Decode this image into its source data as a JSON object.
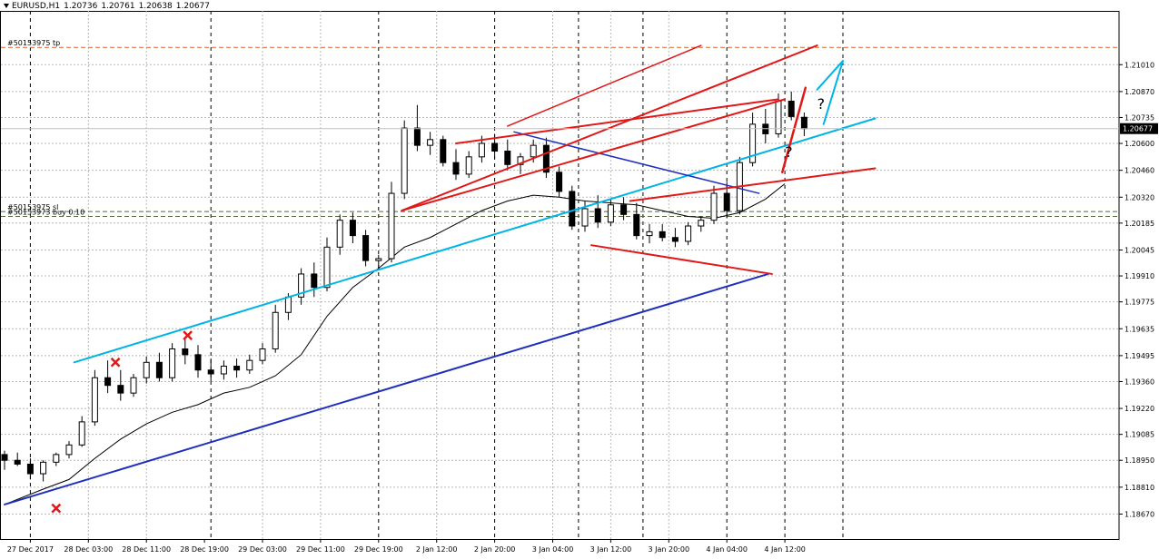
{
  "header": {
    "symbol": "EURUSD,H1",
    "open": "1.20736",
    "high": "1.20761",
    "low": "1.20638",
    "close": "1.20677"
  },
  "hlines": [
    {
      "label": "#50153975 tp",
      "price": 1.211,
      "color": "#d2691e"
    },
    {
      "label": "#50153975 sl",
      "price": 1.20245,
      "color": "#556b2f"
    },
    {
      "label": "#50153973 buy 0.10",
      "price": 1.2022,
      "color": "#556b2f"
    }
  ],
  "current_price": "1.20677",
  "annotations": [
    {
      "text": "?",
      "x": 63.0,
      "y": 1.2078
    },
    {
      "text": "?",
      "x": 60.5,
      "y": 1.2053
    }
  ],
  "chart_data": {
    "type": "candlestick",
    "timeframe": "H1",
    "y_range": [
      1.1854,
      1.2129
    ],
    "y_ticks": [
      "1.21010",
      "1.20870",
      "1.20735",
      "1.20600",
      "1.20460",
      "1.20320",
      "1.20185",
      "1.20045",
      "1.19910",
      "1.19775",
      "1.19635",
      "1.19495",
      "1.19360",
      "1.19220",
      "1.19085",
      "1.18950",
      "1.18810",
      "1.18670"
    ],
    "x_labels": [
      {
        "i": 2,
        "label": "27 Dec 2017"
      },
      {
        "i": 6.5,
        "label": "28 Dec 03:00"
      },
      {
        "i": 11,
        "label": "28 Dec 11:00"
      },
      {
        "i": 15.5,
        "label": "28 Dec 19:00"
      },
      {
        "i": 20,
        "label": "29 Dec 03:00"
      },
      {
        "i": 24.5,
        "label": "29 Dec 11:00"
      },
      {
        "i": 29,
        "label": "29 Dec 19:00"
      },
      {
        "i": 33.5,
        "label": "2 Jan 12:00"
      },
      {
        "i": 38,
        "label": "2 Jan 20:00"
      },
      {
        "i": 42.5,
        "label": "3 Jan 04:00"
      },
      {
        "i": 47,
        "label": "3 Jan 12:00"
      },
      {
        "i": 51.5,
        "label": "3 Jan 20:00"
      },
      {
        "i": 56,
        "label": "4 Jan 04:00"
      },
      {
        "i": 60.5,
        "label": "4 Jan 12:00"
      }
    ],
    "vgrid_dashed": [
      2,
      16,
      29,
      38,
      44.5,
      49.5,
      56,
      60.5,
      65
    ],
    "vgrid_dotted": [
      6.5,
      11,
      20,
      24.5,
      33.5,
      42.5,
      47,
      51.5
    ],
    "candles": [
      {
        "o": 1.1898,
        "h": 1.19,
        "l": 1.189,
        "c": 1.1895
      },
      {
        "o": 1.1895,
        "h": 1.1899,
        "l": 1.1892,
        "c": 1.1893
      },
      {
        "o": 1.1893,
        "h": 1.1896,
        "l": 1.1885,
        "c": 1.1888
      },
      {
        "o": 1.1888,
        "h": 1.1895,
        "l": 1.1884,
        "c": 1.1894
      },
      {
        "o": 1.1894,
        "h": 1.1899,
        "l": 1.1892,
        "c": 1.1898
      },
      {
        "o": 1.1898,
        "h": 1.1905,
        "l": 1.1896,
        "c": 1.1903
      },
      {
        "o": 1.1903,
        "h": 1.1918,
        "l": 1.1902,
        "c": 1.1915
      },
      {
        "o": 1.1915,
        "h": 1.1942,
        "l": 1.1913,
        "c": 1.1938
      },
      {
        "o": 1.1938,
        "h": 1.1947,
        "l": 1.193,
        "c": 1.1934
      },
      {
        "o": 1.1934,
        "h": 1.1942,
        "l": 1.1926,
        "c": 1.193
      },
      {
        "o": 1.193,
        "h": 1.194,
        "l": 1.1928,
        "c": 1.1938
      },
      {
        "o": 1.1938,
        "h": 1.1949,
        "l": 1.1935,
        "c": 1.1946
      },
      {
        "o": 1.1946,
        "h": 1.1951,
        "l": 1.1936,
        "c": 1.1938
      },
      {
        "o": 1.1938,
        "h": 1.1956,
        "l": 1.1936,
        "c": 1.1953
      },
      {
        "o": 1.1953,
        "h": 1.1958,
        "l": 1.1945,
        "c": 1.195
      },
      {
        "o": 1.195,
        "h": 1.1955,
        "l": 1.1938,
        "c": 1.1942
      },
      {
        "o": 1.1942,
        "h": 1.1948,
        "l": 1.1936,
        "c": 1.194
      },
      {
        "o": 1.194,
        "h": 1.1947,
        "l": 1.1937,
        "c": 1.1944
      },
      {
        "o": 1.1944,
        "h": 1.1948,
        "l": 1.1938,
        "c": 1.1942
      },
      {
        "o": 1.1942,
        "h": 1.195,
        "l": 1.194,
        "c": 1.1947
      },
      {
        "o": 1.1947,
        "h": 1.1956,
        "l": 1.1945,
        "c": 1.1953
      },
      {
        "o": 1.1953,
        "h": 1.1976,
        "l": 1.1951,
        "c": 1.1972
      },
      {
        "o": 1.1972,
        "h": 1.1982,
        "l": 1.1968,
        "c": 1.198
      },
      {
        "o": 1.198,
        "h": 1.1995,
        "l": 1.1976,
        "c": 1.1992
      },
      {
        "o": 1.1992,
        "h": 1.1998,
        "l": 1.198,
        "c": 1.1985
      },
      {
        "o": 1.1985,
        "h": 1.2011,
        "l": 1.1983,
        "c": 1.2006
      },
      {
        "o": 1.2006,
        "h": 1.2023,
        "l": 1.2002,
        "c": 1.202
      },
      {
        "o": 1.202,
        "h": 1.2024,
        "l": 1.2008,
        "c": 1.2012
      },
      {
        "o": 1.2012,
        "h": 1.2015,
        "l": 1.1996,
        "c": 1.1999
      },
      {
        "o": 1.1999,
        "h": 1.2002,
        "l": 1.1994,
        "c": 1.2
      },
      {
        "o": 1.2,
        "h": 1.204,
        "l": 1.1998,
        "c": 1.2034
      },
      {
        "o": 1.2034,
        "h": 1.2072,
        "l": 1.2031,
        "c": 1.2068
      },
      {
        "o": 1.2068,
        "h": 1.208,
        "l": 1.2056,
        "c": 1.2059
      },
      {
        "o": 1.2059,
        "h": 1.2066,
        "l": 1.2054,
        "c": 1.2062
      },
      {
        "o": 1.2062,
        "h": 1.2064,
        "l": 1.2048,
        "c": 1.205
      },
      {
        "o": 1.205,
        "h": 1.2057,
        "l": 1.2041,
        "c": 1.2044
      },
      {
        "o": 1.2044,
        "h": 1.2056,
        "l": 1.2042,
        "c": 1.2053
      },
      {
        "o": 1.2053,
        "h": 1.2064,
        "l": 1.205,
        "c": 1.206
      },
      {
        "o": 1.206,
        "h": 1.2065,
        "l": 1.2052,
        "c": 1.2056
      },
      {
        "o": 1.2056,
        "h": 1.2062,
        "l": 1.2046,
        "c": 1.2049
      },
      {
        "o": 1.2049,
        "h": 1.2055,
        "l": 1.2044,
        "c": 1.2053
      },
      {
        "o": 1.2053,
        "h": 1.2062,
        "l": 1.205,
        "c": 1.2059
      },
      {
        "o": 1.2059,
        "h": 1.2063,
        "l": 1.2042,
        "c": 1.2045
      },
      {
        "o": 1.2045,
        "h": 1.2048,
        "l": 1.2032,
        "c": 1.2035
      },
      {
        "o": 1.2035,
        "h": 1.2038,
        "l": 1.2015,
        "c": 1.2017
      },
      {
        "o": 1.2017,
        "h": 1.203,
        "l": 1.2014,
        "c": 1.2026
      },
      {
        "o": 1.2026,
        "h": 1.2033,
        "l": 1.2016,
        "c": 1.2019
      },
      {
        "o": 1.2019,
        "h": 1.2031,
        "l": 1.2017,
        "c": 1.2028
      },
      {
        "o": 1.2028,
        "h": 1.2032,
        "l": 1.202,
        "c": 1.2023
      },
      {
        "o": 1.2023,
        "h": 1.2029,
        "l": 1.201,
        "c": 1.2012
      },
      {
        "o": 1.2012,
        "h": 1.2018,
        "l": 1.2008,
        "c": 1.2014
      },
      {
        "o": 1.2014,
        "h": 1.2018,
        "l": 1.2009,
        "c": 1.2011
      },
      {
        "o": 1.2011,
        "h": 1.2016,
        "l": 1.2006,
        "c": 1.2009
      },
      {
        "o": 1.2009,
        "h": 1.2019,
        "l": 1.2007,
        "c": 1.2017
      },
      {
        "o": 1.2017,
        "h": 1.2022,
        "l": 1.2014,
        "c": 1.202
      },
      {
        "o": 1.202,
        "h": 1.2038,
        "l": 1.2018,
        "c": 1.2034
      },
      {
        "o": 1.2034,
        "h": 1.204,
        "l": 1.2021,
        "c": 1.2025
      },
      {
        "o": 1.2025,
        "h": 1.2053,
        "l": 1.2023,
        "c": 1.205
      },
      {
        "o": 1.205,
        "h": 1.2076,
        "l": 1.2048,
        "c": 1.207
      },
      {
        "o": 1.207,
        "h": 1.2078,
        "l": 1.206,
        "c": 1.2065
      },
      {
        "o": 1.2065,
        "h": 1.2086,
        "l": 1.2063,
        "c": 1.2082
      },
      {
        "o": 1.2082,
        "h": 1.2087,
        "l": 1.2072,
        "c": 1.2074
      },
      {
        "o": 1.20736,
        "h": 1.20761,
        "l": 1.20638,
        "c": 1.20677
      }
    ],
    "ma_series": {
      "type": "line",
      "color": "#000000",
      "values": [
        {
          "i": 0,
          "v": 1.1872
        },
        {
          "i": 3,
          "v": 1.188
        },
        {
          "i": 5,
          "v": 1.1885
        },
        {
          "i": 7,
          "v": 1.1896
        },
        {
          "i": 9,
          "v": 1.1906
        },
        {
          "i": 11,
          "v": 1.1914
        },
        {
          "i": 13,
          "v": 1.192
        },
        {
          "i": 15,
          "v": 1.1924
        },
        {
          "i": 17,
          "v": 1.193
        },
        {
          "i": 19,
          "v": 1.1933
        },
        {
          "i": 21,
          "v": 1.1939
        },
        {
          "i": 23,
          "v": 1.195
        },
        {
          "i": 25,
          "v": 1.197
        },
        {
          "i": 27,
          "v": 1.1985
        },
        {
          "i": 29,
          "v": 1.1995
        },
        {
          "i": 31,
          "v": 1.2006
        },
        {
          "i": 33,
          "v": 1.2011
        },
        {
          "i": 35,
          "v": 1.2018
        },
        {
          "i": 37,
          "v": 1.2025
        },
        {
          "i": 39,
          "v": 1.203
        },
        {
          "i": 41,
          "v": 1.2033
        },
        {
          "i": 43,
          "v": 1.2032
        },
        {
          "i": 45,
          "v": 1.203
        },
        {
          "i": 47,
          "v": 1.2029
        },
        {
          "i": 49,
          "v": 1.2028
        },
        {
          "i": 51,
          "v": 1.2025
        },
        {
          "i": 53,
          "v": 1.2022
        },
        {
          "i": 55,
          "v": 1.2021
        },
        {
          "i": 57,
          "v": 1.2024
        },
        {
          "i": 59,
          "v": 1.2031
        },
        {
          "i": 60.5,
          "v": 1.2039
        }
      ]
    },
    "trendlines": [
      {
        "color": "#00b4e6",
        "width": 2,
        "x1": 5.4,
        "y1": 1.1946,
        "x2": 67.5,
        "y2": 1.2073
      },
      {
        "color": "#1f2fbd",
        "width": 2,
        "x1": 0,
        "y1": 1.1872,
        "x2": 59.2,
        "y2": 1.1992
      },
      {
        "color": "#1f2fbd",
        "width": 1.5,
        "x1": 39.5,
        "y1": 1.2066,
        "x2": 58.5,
        "y2": 1.2034
      },
      {
        "color": "#e01818",
        "width": 2,
        "x1": 30.8,
        "y1": 1.2025,
        "x2": 63.0,
        "y2": 1.2111
      },
      {
        "color": "#e01818",
        "width": 1.5,
        "x1": 39.0,
        "y1": 1.2069,
        "x2": 54.0,
        "y2": 1.2111
      },
      {
        "color": "#e01818",
        "width": 2,
        "x1": 30.8,
        "y1": 1.2025,
        "x2": 60.5,
        "y2": 1.2083
      },
      {
        "color": "#e01818",
        "width": 2,
        "x1": 35.0,
        "y1": 1.206,
        "x2": 60.0,
        "y2": 1.2083
      },
      {
        "color": "#e01818",
        "width": 2,
        "x1": 48.5,
        "y1": 1.203,
        "x2": 67.5,
        "y2": 1.2047
      },
      {
        "color": "#e01818",
        "width": 2,
        "x1": 45.5,
        "y1": 1.2007,
        "x2": 59.5,
        "y2": 1.1992
      },
      {
        "color": "#e01818",
        "width": 2.5,
        "x1": 60.3,
        "y1": 1.2045,
        "x2": 62.1,
        "y2": 1.2089
      },
      {
        "color": "#00b4e6",
        "width": 2,
        "x1": 63.5,
        "y1": 1.207,
        "x2": 65.0,
        "y2": 1.2103
      },
      {
        "color": "#00b4e6",
        "width": 2,
        "x1": 65.0,
        "y1": 1.2103,
        "x2": 63.0,
        "y2": 1.2088
      }
    ],
    "markers": [
      {
        "type": "cross",
        "color": "#e01818",
        "x": 4.0,
        "y": 1.187
      },
      {
        "type": "cross",
        "color": "#e01818",
        "x": 8.6,
        "y": 1.1946
      },
      {
        "type": "cross",
        "color": "#e01818",
        "x": 14.2,
        "y": 1.196
      }
    ]
  }
}
